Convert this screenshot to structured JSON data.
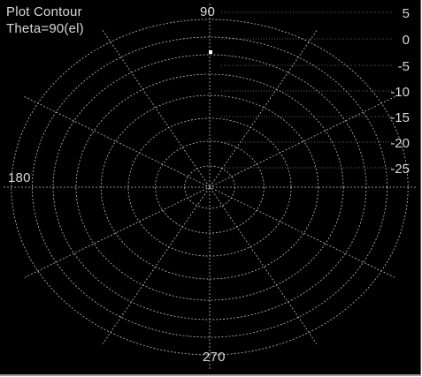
{
  "window": {
    "title_line1": "Plot Contour",
    "title_line2": "Theta=90(el)"
  },
  "polar": {
    "angle_labels": [
      "90",
      "180",
      "270"
    ],
    "level_labels": [
      "5",
      "0",
      "-5",
      "-10",
      "-15",
      "-20",
      "-25"
    ],
    "colors": {
      "background": "#000000",
      "grid": "#bdbdbd",
      "text": "#d8d8d8"
    }
  }
}
